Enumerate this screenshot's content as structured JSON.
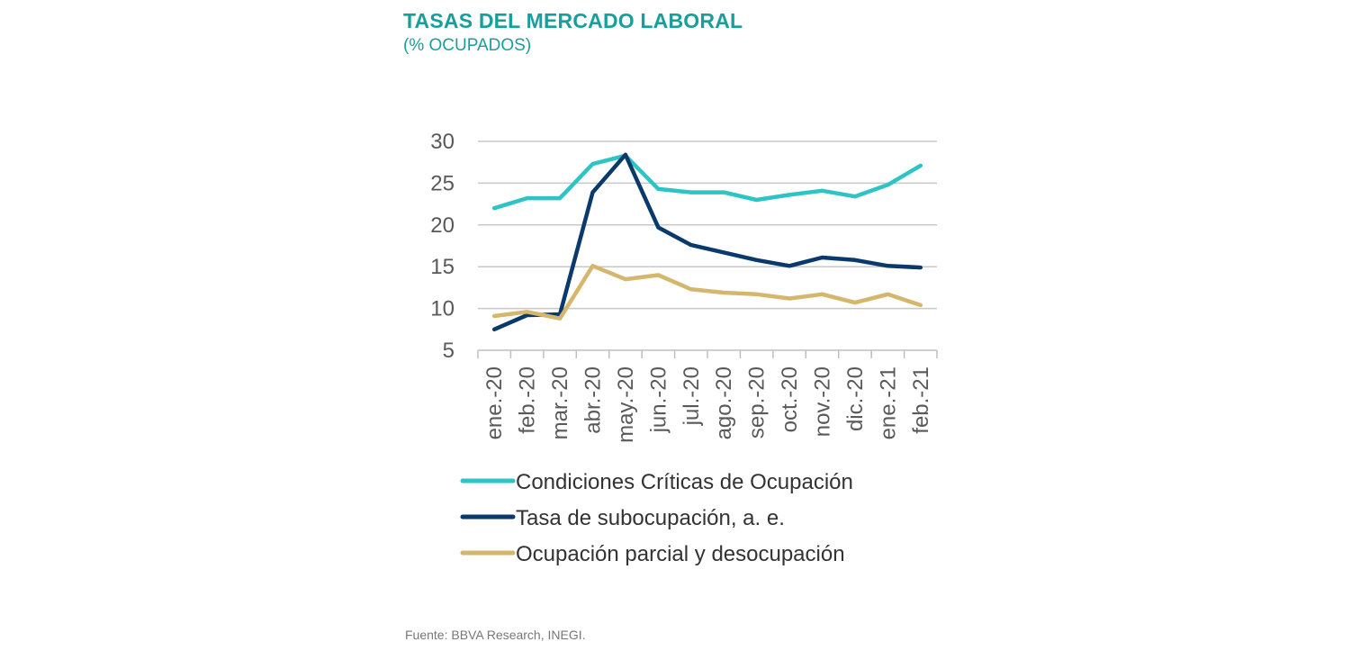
{
  "header": {
    "title": "TASAS DEL MERCADO LABORAL",
    "subtitle": "(% OCUPADOS)"
  },
  "footer": {
    "source": "Fuente: BBVA Research, INEGI."
  },
  "chart_data": {
    "type": "line",
    "title": "TASAS DEL MERCADO LABORAL",
    "subtitle": "(% OCUPADOS)",
    "xlabel": "",
    "ylabel": "",
    "ylim": [
      5,
      30
    ],
    "yticks": [
      5,
      10,
      15,
      20,
      25,
      30
    ],
    "grid": true,
    "legend_position": "bottom",
    "categories": [
      "ene.-20",
      "feb.-20",
      "mar.-20",
      "abr.-20",
      "may.-20",
      "jun.-20",
      "jul.-20",
      "ago.-20",
      "sep.-20",
      "oct.-20",
      "nov.-20",
      "dic.-20",
      "ene.-21",
      "feb.-21"
    ],
    "series": [
      {
        "name": "Condiciones Críticas de Ocupación",
        "color": "#2ec4c6",
        "values": [
          22.0,
          23.2,
          23.2,
          27.3,
          28.3,
          24.3,
          23.9,
          23.9,
          23.0,
          23.6,
          24.1,
          23.4,
          24.8,
          27.1
        ]
      },
      {
        "name": "Tasa de subocupación, a. e.",
        "color": "#0a3a6b",
        "values": [
          7.5,
          9.2,
          9.3,
          23.9,
          28.4,
          19.7,
          17.6,
          16.7,
          15.8,
          15.1,
          16.1,
          15.8,
          15.1,
          14.9
        ]
      },
      {
        "name": "Ocupación parcial y desocupación",
        "color": "#d4b76c",
        "values": [
          9.1,
          9.6,
          8.8,
          15.1,
          13.5,
          14.0,
          12.3,
          11.9,
          11.7,
          11.2,
          11.7,
          10.7,
          11.7,
          10.4
        ]
      }
    ]
  }
}
